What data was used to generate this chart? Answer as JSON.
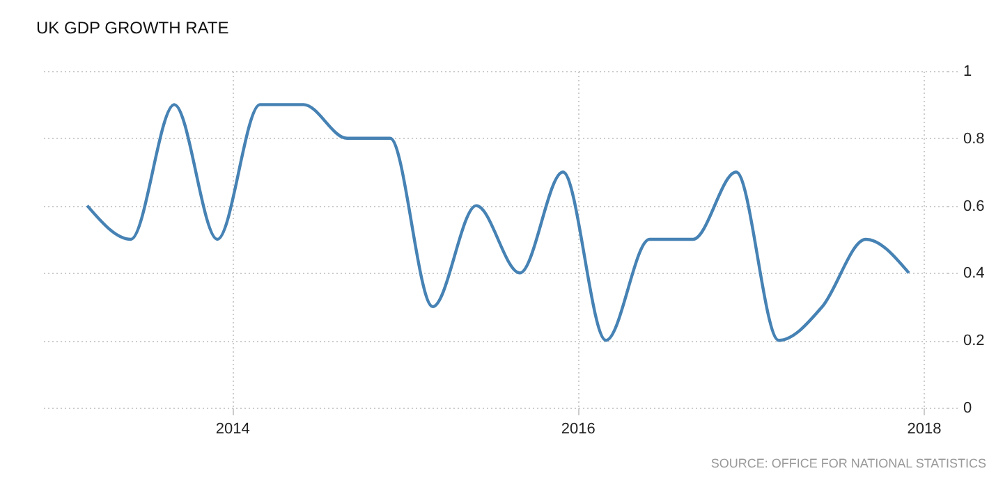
{
  "chart_data": {
    "type": "line",
    "title": "UK GDP GROWTH RATE",
    "x": [
      "2013-03-01",
      "2013-06-01",
      "2013-09-01",
      "2013-12-01",
      "2014-03-01",
      "2014-06-01",
      "2014-09-01",
      "2014-12-01",
      "2015-03-01",
      "2015-06-01",
      "2015-09-01",
      "2015-12-01",
      "2016-03-01",
      "2016-06-01",
      "2016-09-01",
      "2016-12-01",
      "2017-03-01",
      "2017-06-01",
      "2017-09-01",
      "2017-12-01"
    ],
    "series": [
      {
        "color": "#4682b4",
        "values": [
          0.6,
          0.5,
          0.9,
          0.5,
          0.9,
          0.9,
          0.8,
          0.8,
          0.3,
          0.6,
          0.4,
          0.7,
          0.2,
          0.5,
          0.5,
          0.7,
          0.2,
          0.3,
          0.5,
          0.4
        ]
      }
    ],
    "xlim": [
      "2012-11-25",
      "2018-02-20"
    ],
    "xticks": [
      "2014",
      "2016",
      "2018"
    ],
    "ylim": [
      0,
      1
    ],
    "yticks": [
      0,
      0.2,
      0.4,
      0.6,
      0.8,
      1
    ],
    "grid": true,
    "marker": "none",
    "line_style": "solid",
    "annotations": [
      "SOURCE: OFFICE FOR NATIONAL STATISTICS"
    ]
  }
}
